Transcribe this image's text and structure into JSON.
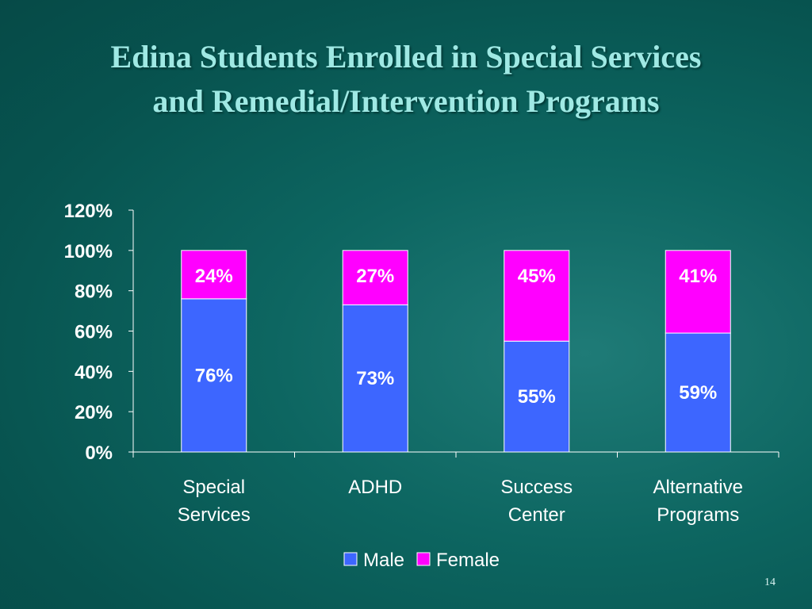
{
  "slide": {
    "title_line1": "Edina Students Enrolled in Special Services",
    "title_line2": "and Remedial/Intervention Programs",
    "page_number": "14",
    "background_color": "#0a5e5a",
    "title_color": "#9fe9e4"
  },
  "chart_data": {
    "type": "bar",
    "stacked": true,
    "categories": [
      [
        "Special",
        "Services"
      ],
      [
        "ADHD"
      ],
      [
        "Success",
        "Center"
      ],
      [
        "Alternative",
        "Programs"
      ]
    ],
    "series": [
      {
        "name": "Male",
        "color": "#3d66ff",
        "values": [
          76,
          73,
          55,
          59
        ],
        "labels": [
          "76%",
          "73%",
          "55%",
          "59%"
        ]
      },
      {
        "name": "Female",
        "color": "#ff00ff",
        "values": [
          24,
          27,
          45,
          41
        ],
        "labels": [
          "24%",
          "27%",
          "45%",
          "41%"
        ]
      }
    ],
    "ylim": [
      0,
      120
    ],
    "yticks": [
      0,
      20,
      40,
      60,
      80,
      100,
      120
    ],
    "ytick_labels": [
      "0%",
      "20%",
      "40%",
      "60%",
      "80%",
      "100%",
      "120%"
    ],
    "grid": false,
    "legend": "bottom-center"
  }
}
